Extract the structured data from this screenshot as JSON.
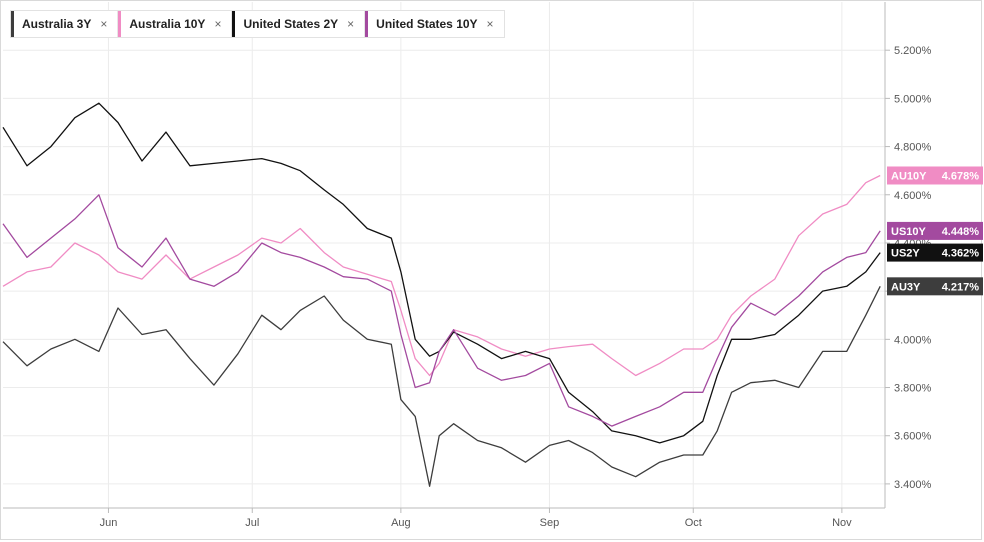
{
  "legend": {
    "items": [
      {
        "label": "Australia 3Y",
        "color": "#3d3d3d",
        "close": "×"
      },
      {
        "label": "Australia 10Y",
        "color": "#f08cc4",
        "close": "×"
      },
      {
        "label": "United States 2Y",
        "color": "#111111",
        "close": "×"
      },
      {
        "label": "United States 10Y",
        "color": "#a34a9f",
        "close": "×"
      }
    ]
  },
  "chart_data": {
    "type": "line",
    "x_range": [
      "2023-05-10",
      "2023-11-10"
    ],
    "ylim": [
      3.3,
      5.4
    ],
    "y_ticks": [
      3.4,
      3.6,
      3.8,
      4.0,
      4.2,
      4.4,
      4.6,
      4.8,
      5.0,
      5.2
    ],
    "y_tick_format": "3 decimals with %",
    "x_ticks": [
      {
        "label": "Jun",
        "date": "2023-06-01"
      },
      {
        "label": "Jul",
        "date": "2023-07-01"
      },
      {
        "label": "Aug",
        "date": "2023-08-01"
      },
      {
        "label": "Sep",
        "date": "2023-09-01"
      },
      {
        "label": "Oct",
        "date": "2023-10-01"
      },
      {
        "label": "Nov",
        "date": "2023-11-01"
      }
    ],
    "grid": true,
    "y_axis_position": "right",
    "series": [
      {
        "name": "Australia 3Y",
        "tag": "AU3Y",
        "last_value": "4.217%",
        "color": "#3d3d3d",
        "points": [
          [
            "2023-05-10",
            3.99
          ],
          [
            "2023-05-15",
            3.89
          ],
          [
            "2023-05-20",
            3.96
          ],
          [
            "2023-05-25",
            4.0
          ],
          [
            "2023-05-30",
            3.95
          ],
          [
            "2023-06-03",
            4.13
          ],
          [
            "2023-06-08",
            4.02
          ],
          [
            "2023-06-13",
            4.04
          ],
          [
            "2023-06-18",
            3.92
          ],
          [
            "2023-06-23",
            3.81
          ],
          [
            "2023-06-28",
            3.94
          ],
          [
            "2023-07-03",
            4.1
          ],
          [
            "2023-07-07",
            4.04
          ],
          [
            "2023-07-11",
            4.12
          ],
          [
            "2023-07-16",
            4.18
          ],
          [
            "2023-07-20",
            4.08
          ],
          [
            "2023-07-25",
            4.0
          ],
          [
            "2023-07-30",
            3.98
          ],
          [
            "2023-08-01",
            3.75
          ],
          [
            "2023-08-04",
            3.68
          ],
          [
            "2023-08-07",
            3.39
          ],
          [
            "2023-08-09",
            3.6
          ],
          [
            "2023-08-12",
            3.65
          ],
          [
            "2023-08-17",
            3.58
          ],
          [
            "2023-08-22",
            3.55
          ],
          [
            "2023-08-27",
            3.49
          ],
          [
            "2023-09-01",
            3.56
          ],
          [
            "2023-09-05",
            3.58
          ],
          [
            "2023-09-10",
            3.53
          ],
          [
            "2023-09-14",
            3.47
          ],
          [
            "2023-09-19",
            3.43
          ],
          [
            "2023-09-24",
            3.49
          ],
          [
            "2023-09-29",
            3.52
          ],
          [
            "2023-10-03",
            3.52
          ],
          [
            "2023-10-06",
            3.62
          ],
          [
            "2023-10-09",
            3.78
          ],
          [
            "2023-10-13",
            3.82
          ],
          [
            "2023-10-18",
            3.83
          ],
          [
            "2023-10-23",
            3.8
          ],
          [
            "2023-10-28",
            3.95
          ],
          [
            "2023-11-02",
            3.95
          ],
          [
            "2023-11-06",
            4.1
          ],
          [
            "2023-11-09",
            4.22
          ]
        ]
      },
      {
        "name": "Australia 10Y",
        "tag": "AU10Y",
        "last_value": "4.678%",
        "color": "#f08cc4",
        "points": [
          [
            "2023-05-10",
            4.22
          ],
          [
            "2023-05-15",
            4.28
          ],
          [
            "2023-05-20",
            4.3
          ],
          [
            "2023-05-25",
            4.4
          ],
          [
            "2023-05-30",
            4.35
          ],
          [
            "2023-06-03",
            4.28
          ],
          [
            "2023-06-08",
            4.25
          ],
          [
            "2023-06-13",
            4.35
          ],
          [
            "2023-06-18",
            4.25
          ],
          [
            "2023-06-23",
            4.3
          ],
          [
            "2023-06-28",
            4.35
          ],
          [
            "2023-07-03",
            4.42
          ],
          [
            "2023-07-07",
            4.4
          ],
          [
            "2023-07-11",
            4.46
          ],
          [
            "2023-07-16",
            4.36
          ],
          [
            "2023-07-20",
            4.3
          ],
          [
            "2023-07-25",
            4.27
          ],
          [
            "2023-07-30",
            4.24
          ],
          [
            "2023-08-01",
            4.12
          ],
          [
            "2023-08-04",
            3.92
          ],
          [
            "2023-08-07",
            3.85
          ],
          [
            "2023-08-09",
            3.9
          ],
          [
            "2023-08-12",
            4.04
          ],
          [
            "2023-08-17",
            4.01
          ],
          [
            "2023-08-22",
            3.96
          ],
          [
            "2023-08-27",
            3.93
          ],
          [
            "2023-09-01",
            3.96
          ],
          [
            "2023-09-05",
            3.97
          ],
          [
            "2023-09-10",
            3.98
          ],
          [
            "2023-09-14",
            3.92
          ],
          [
            "2023-09-19",
            3.85
          ],
          [
            "2023-09-24",
            3.9
          ],
          [
            "2023-09-29",
            3.96
          ],
          [
            "2023-10-03",
            3.96
          ],
          [
            "2023-10-06",
            4.0
          ],
          [
            "2023-10-09",
            4.1
          ],
          [
            "2023-10-13",
            4.18
          ],
          [
            "2023-10-18",
            4.25
          ],
          [
            "2023-10-23",
            4.43
          ],
          [
            "2023-10-28",
            4.52
          ],
          [
            "2023-11-02",
            4.56
          ],
          [
            "2023-11-06",
            4.65
          ],
          [
            "2023-11-09",
            4.68
          ]
        ]
      },
      {
        "name": "United States 2Y",
        "tag": "US2Y",
        "last_value": "4.362%",
        "color": "#111111",
        "points": [
          [
            "2023-05-10",
            4.88
          ],
          [
            "2023-05-15",
            4.72
          ],
          [
            "2023-05-20",
            4.8
          ],
          [
            "2023-05-25",
            4.92
          ],
          [
            "2023-05-30",
            4.98
          ],
          [
            "2023-06-03",
            4.9
          ],
          [
            "2023-06-08",
            4.74
          ],
          [
            "2023-06-13",
            4.86
          ],
          [
            "2023-06-18",
            4.72
          ],
          [
            "2023-06-23",
            4.73
          ],
          [
            "2023-06-28",
            4.74
          ],
          [
            "2023-07-03",
            4.75
          ],
          [
            "2023-07-07",
            4.73
          ],
          [
            "2023-07-11",
            4.7
          ],
          [
            "2023-07-16",
            4.62
          ],
          [
            "2023-07-20",
            4.56
          ],
          [
            "2023-07-25",
            4.46
          ],
          [
            "2023-07-30",
            4.42
          ],
          [
            "2023-08-01",
            4.28
          ],
          [
            "2023-08-04",
            4.0
          ],
          [
            "2023-08-07",
            3.93
          ],
          [
            "2023-08-09",
            3.95
          ],
          [
            "2023-08-12",
            4.03
          ],
          [
            "2023-08-17",
            3.98
          ],
          [
            "2023-08-22",
            3.92
          ],
          [
            "2023-08-27",
            3.95
          ],
          [
            "2023-09-01",
            3.92
          ],
          [
            "2023-09-05",
            3.78
          ],
          [
            "2023-09-10",
            3.7
          ],
          [
            "2023-09-14",
            3.62
          ],
          [
            "2023-09-19",
            3.6
          ],
          [
            "2023-09-24",
            3.57
          ],
          [
            "2023-09-29",
            3.6
          ],
          [
            "2023-10-03",
            3.66
          ],
          [
            "2023-10-06",
            3.85
          ],
          [
            "2023-10-09",
            4.0
          ],
          [
            "2023-10-13",
            4.0
          ],
          [
            "2023-10-18",
            4.02
          ],
          [
            "2023-10-23",
            4.1
          ],
          [
            "2023-10-28",
            4.2
          ],
          [
            "2023-11-02",
            4.22
          ],
          [
            "2023-11-06",
            4.28
          ],
          [
            "2023-11-09",
            4.36
          ]
        ]
      },
      {
        "name": "United States 10Y",
        "tag": "US10Y",
        "last_value": "4.448%",
        "color": "#a34a9f",
        "points": [
          [
            "2023-05-10",
            4.48
          ],
          [
            "2023-05-15",
            4.34
          ],
          [
            "2023-05-20",
            4.42
          ],
          [
            "2023-05-25",
            4.5
          ],
          [
            "2023-05-30",
            4.6
          ],
          [
            "2023-06-03",
            4.38
          ],
          [
            "2023-06-08",
            4.3
          ],
          [
            "2023-06-13",
            4.42
          ],
          [
            "2023-06-18",
            4.25
          ],
          [
            "2023-06-23",
            4.22
          ],
          [
            "2023-06-28",
            4.28
          ],
          [
            "2023-07-03",
            4.4
          ],
          [
            "2023-07-07",
            4.36
          ],
          [
            "2023-07-11",
            4.34
          ],
          [
            "2023-07-16",
            4.3
          ],
          [
            "2023-07-20",
            4.26
          ],
          [
            "2023-07-25",
            4.25
          ],
          [
            "2023-07-30",
            4.2
          ],
          [
            "2023-08-01",
            4.02
          ],
          [
            "2023-08-04",
            3.8
          ],
          [
            "2023-08-07",
            3.82
          ],
          [
            "2023-08-09",
            3.95
          ],
          [
            "2023-08-12",
            4.04
          ],
          [
            "2023-08-17",
            3.88
          ],
          [
            "2023-08-22",
            3.83
          ],
          [
            "2023-08-27",
            3.85
          ],
          [
            "2023-09-01",
            3.9
          ],
          [
            "2023-09-05",
            3.72
          ],
          [
            "2023-09-10",
            3.68
          ],
          [
            "2023-09-14",
            3.64
          ],
          [
            "2023-09-19",
            3.68
          ],
          [
            "2023-09-24",
            3.72
          ],
          [
            "2023-09-29",
            3.78
          ],
          [
            "2023-10-03",
            3.78
          ],
          [
            "2023-10-06",
            3.92
          ],
          [
            "2023-10-09",
            4.05
          ],
          [
            "2023-10-13",
            4.15
          ],
          [
            "2023-10-18",
            4.1
          ],
          [
            "2023-10-23",
            4.18
          ],
          [
            "2023-10-28",
            4.28
          ],
          [
            "2023-11-02",
            4.34
          ],
          [
            "2023-11-06",
            4.36
          ],
          [
            "2023-11-09",
            4.45
          ]
        ]
      }
    ]
  }
}
